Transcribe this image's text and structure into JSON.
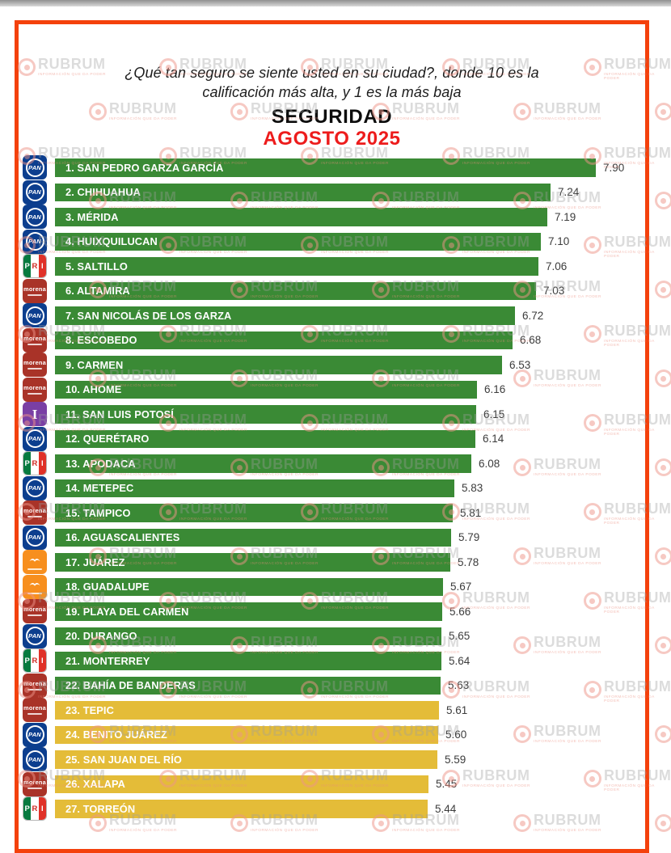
{
  "header": {
    "question_line1": "¿Qué tan seguro se siente usted en su ciudad?, donde 10 es la",
    "question_line2": "calificación más alta, y  1 es la más baja",
    "title": "SEGURIDAD",
    "subtitle": "AGOSTO 2025"
  },
  "watermark": {
    "text": "RUBRUM",
    "tagline": "INFORMACIÓN QUE DA PODER"
  },
  "colors": {
    "bar_green": "#3a8a35",
    "bar_yellow": "#e4bc38",
    "border_red": "#f4410c",
    "subtitle_red": "#ed1c1c",
    "value_text": "#3c3c3c"
  },
  "parties": {
    "PAN": {
      "label": "PAN",
      "color": "#0c3e8e"
    },
    "PRI": {
      "label": "PRI",
      "stripe_colors": [
        "#077a3f",
        "#ffffff",
        "#e03128"
      ]
    },
    "MORENA": {
      "label": "morena",
      "color": "#a93328"
    },
    "MC": {
      "label": "MC",
      "color": "#f78f1e",
      "symbol": "eagle"
    },
    "IND": {
      "label": "I",
      "color": "#7a3fa4"
    }
  },
  "chart_data": {
    "type": "bar",
    "orientation": "horizontal",
    "question": "¿Qué tan seguro se siente usted en su ciudad?, donde 10 es la calificación más alta, y 1 es la más baja",
    "title": "SEGURIDAD",
    "period": "AGOSTO 2025",
    "value_range": [
      0,
      10
    ],
    "bar_scale_reference_max": 7.9,
    "legend": "bar color: green = higher perceived security, yellow = lowest group",
    "items": [
      {
        "rank": 1,
        "city": "SAN PEDRO GARZA GARCÍA",
        "party": "PAN",
        "value": 7.9,
        "display": "7.90",
        "color": "green"
      },
      {
        "rank": 2,
        "city": "CHIHUAHUA",
        "party": "PAN",
        "value": 7.24,
        "display": "7.24",
        "color": "green"
      },
      {
        "rank": 3,
        "city": "MÉRIDA",
        "party": "PAN",
        "value": 7.19,
        "display": "7.19",
        "color": "green"
      },
      {
        "rank": 4,
        "city": "HUIXQUILUCAN",
        "party": "PAN",
        "value": 7.1,
        "display": "7.10",
        "color": "green"
      },
      {
        "rank": 5,
        "city": "SALTILLO",
        "party": "PRI",
        "value": 7.06,
        "display": "7.06",
        "color": "green"
      },
      {
        "rank": 6,
        "city": "ALTAMIRA",
        "party": "MORENA",
        "value": 7.03,
        "display": "7.03",
        "color": "green"
      },
      {
        "rank": 7,
        "city": "SAN NICOLÁS DE LOS GARZA",
        "party": "PAN",
        "value": 6.72,
        "display": "6.72",
        "color": "green"
      },
      {
        "rank": 8,
        "city": "ESCOBEDO",
        "party": "MORENA",
        "value": 6.68,
        "display": "6.68",
        "color": "green"
      },
      {
        "rank": 9,
        "city": "CARMEN",
        "party": "MORENA",
        "value": 6.53,
        "display": "6.53",
        "color": "green"
      },
      {
        "rank": 10,
        "city": "AHOME",
        "party": "MORENA",
        "value": 6.16,
        "display": "6.16",
        "color": "green"
      },
      {
        "rank": 11,
        "city": "SAN LUIS POTOSÍ",
        "party": "IND",
        "value": 6.15,
        "display": "6.15",
        "color": "green"
      },
      {
        "rank": 12,
        "city": "QUERÉTARO",
        "party": "PAN",
        "value": 6.14,
        "display": "6.14",
        "color": "green"
      },
      {
        "rank": 13,
        "city": "APODACA",
        "party": "PRI",
        "value": 6.08,
        "display": "6.08",
        "color": "green"
      },
      {
        "rank": 14,
        "city": "METEPEC",
        "party": "PAN",
        "value": 5.83,
        "display": "5.83",
        "color": "green"
      },
      {
        "rank": 15,
        "city": "TAMPICO",
        "party": "MORENA",
        "value": 5.81,
        "display": "5.81",
        "color": "green"
      },
      {
        "rank": 16,
        "city": "AGUASCALIENTES",
        "party": "PAN",
        "value": 5.79,
        "display": "5.79",
        "color": "green"
      },
      {
        "rank": 17,
        "city": "JUÁREZ",
        "party": "MC",
        "value": 5.78,
        "display": "5.78",
        "color": "green"
      },
      {
        "rank": 18,
        "city": "GUADALUPE",
        "party": "MC",
        "value": 5.67,
        "display": "5.67",
        "color": "green"
      },
      {
        "rank": 19,
        "city": "PLAYA DEL CARMEN",
        "party": "MORENA",
        "value": 5.66,
        "display": "5.66",
        "color": "green"
      },
      {
        "rank": 20,
        "city": "DURANGO",
        "party": "PAN",
        "value": 5.65,
        "display": "5.65",
        "color": "green"
      },
      {
        "rank": 21,
        "city": "MONTERREY",
        "party": "PRI",
        "value": 5.64,
        "display": "5.64",
        "color": "green"
      },
      {
        "rank": 22,
        "city": "BAHÍA DE BANDERAS",
        "party": "MORENA",
        "value": 5.63,
        "display": "5.63",
        "color": "green"
      },
      {
        "rank": 23,
        "city": "TEPIC",
        "party": "MORENA",
        "value": 5.61,
        "display": "5.61",
        "color": "yellow"
      },
      {
        "rank": 24,
        "city": "BENITO JUÁREZ",
        "party": "PAN",
        "value": 5.6,
        "display": "5.60",
        "color": "yellow"
      },
      {
        "rank": 25,
        "city": "SAN JUAN DEL RÍO",
        "party": "PAN",
        "value": 5.59,
        "display": "5.59",
        "color": "yellow"
      },
      {
        "rank": 26,
        "city": "XALAPA",
        "party": "MORENA",
        "value": 5.45,
        "display": "5.45",
        "color": "yellow"
      },
      {
        "rank": 27,
        "city": "TORREÓN",
        "party": "PRI",
        "value": 5.44,
        "display": "5.44",
        "color": "yellow"
      }
    ]
  }
}
